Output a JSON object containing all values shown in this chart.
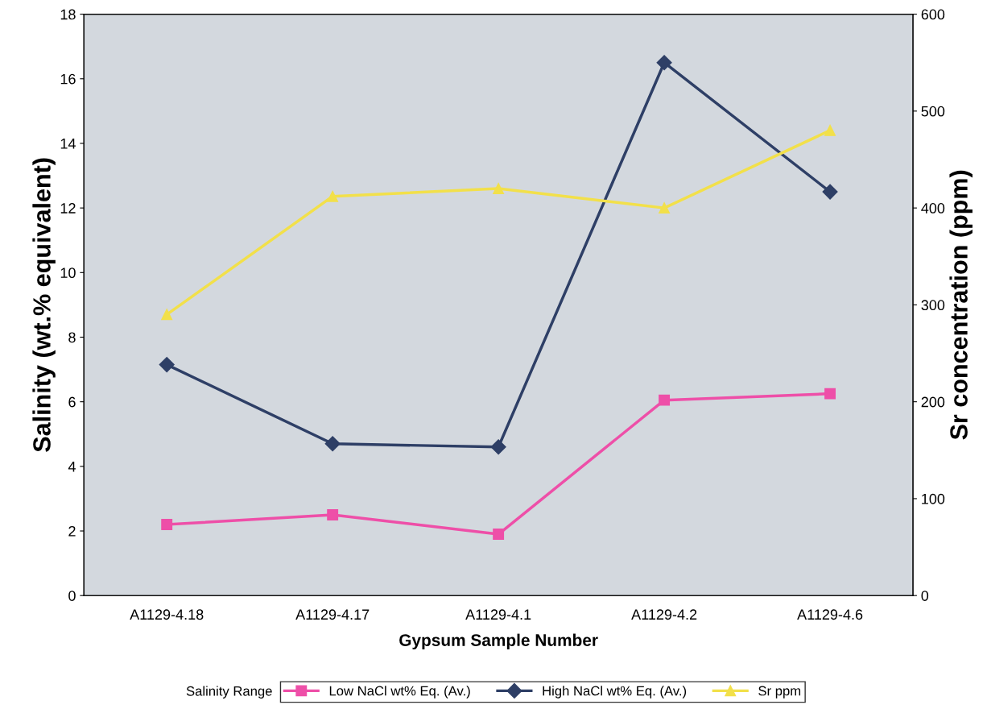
{
  "chart_data": {
    "type": "line",
    "xlabel": "Gypsum Sample Number",
    "ylabel": "Salinity (wt.% equivalent)",
    "y2label": "Sr concentration (ppm)",
    "legend_title": "Salinity Range",
    "categories": [
      "A1129-4.18",
      "A1129-4.17",
      "A1129-4.1",
      "A1129-4.2",
      "A1129-4.6"
    ],
    "series": [
      {
        "name": "Low NaCl wt% Eq. (Av.)",
        "color": "#ee4fa8",
        "marker": "square",
        "values": [
          2.2,
          2.5,
          1.9,
          6.05,
          6.25
        ]
      },
      {
        "name": "High NaCl wt% Eq. (Av.)",
        "color": "#2e3f66",
        "marker": "diamond",
        "values": [
          7.15,
          4.7,
          4.6,
          16.5,
          12.5
        ]
      },
      {
        "name": "Sr ppm",
        "color": "#f2e04a",
        "marker": "triangle",
        "axis": "y2",
        "values": [
          290,
          412,
          420,
          400,
          480
        ]
      }
    ],
    "ylim": [
      0,
      18
    ],
    "yticks": [
      0,
      2,
      4,
      6,
      8,
      10,
      12,
      14,
      16,
      18
    ],
    "y2lim": [
      0,
      600
    ],
    "y2ticks": [
      0,
      100,
      200,
      300,
      400,
      500,
      600
    ],
    "grid": false,
    "legend": "bottom"
  }
}
